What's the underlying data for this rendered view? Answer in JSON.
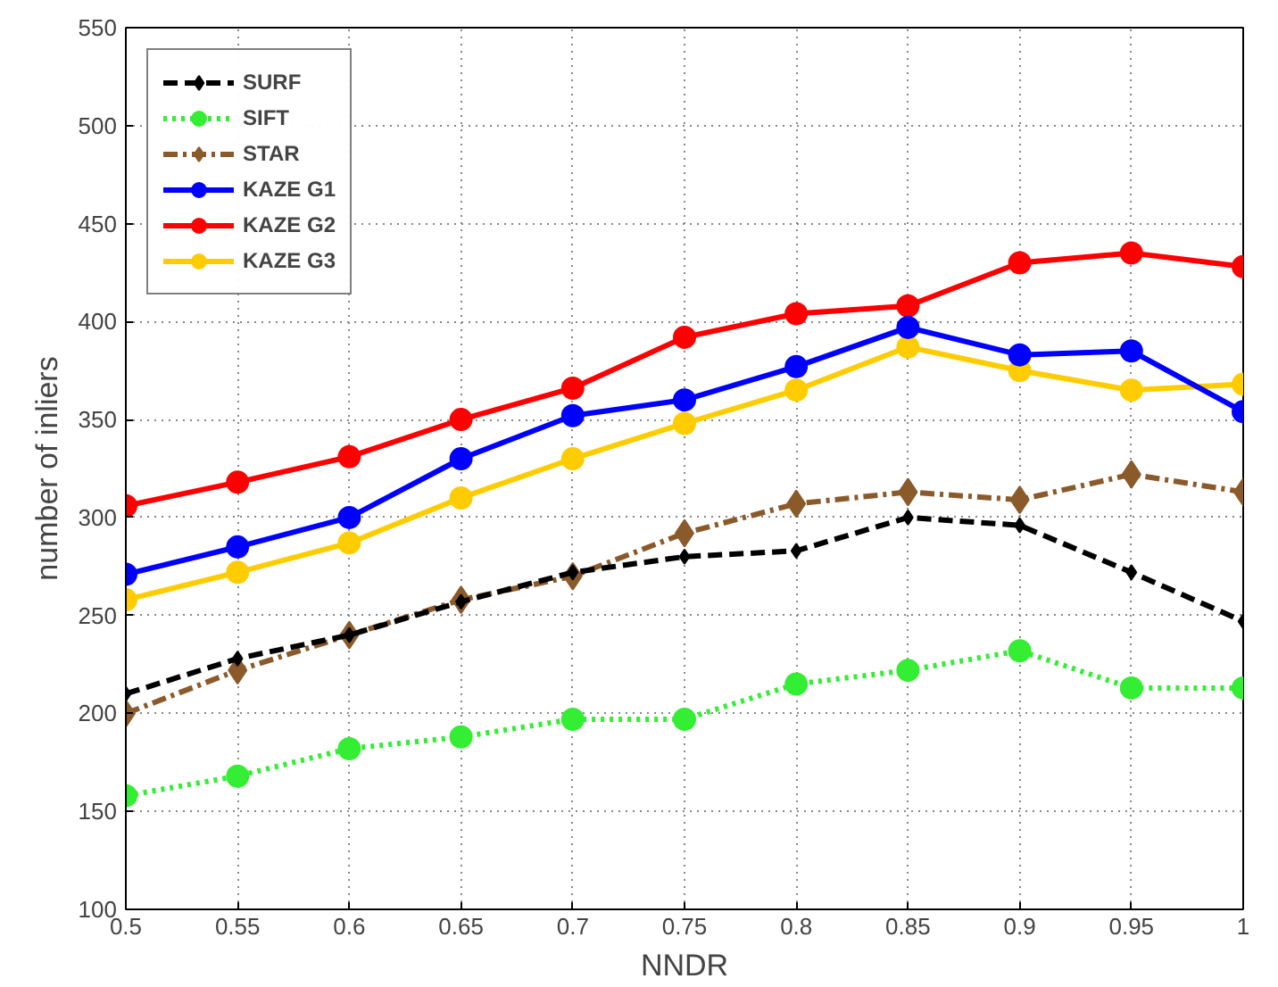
{
  "chart_data": {
    "type": "line",
    "xlabel": "NNDR",
    "ylabel": "number of inliers",
    "x": [
      0.5,
      0.55,
      0.6,
      0.65,
      0.7,
      0.75,
      0.8,
      0.85,
      0.9,
      0.95,
      1
    ],
    "xlim": [
      0.5,
      1
    ],
    "xticks": [
      0.5,
      0.55,
      0.6,
      0.65,
      0.7,
      0.75,
      0.8,
      0.85,
      0.9,
      0.95,
      1
    ],
    "ylim": [
      100,
      550
    ],
    "yticks": [
      100,
      150,
      200,
      250,
      300,
      350,
      400,
      450,
      500,
      550
    ],
    "grid": true,
    "legend": "top left",
    "series": [
      {
        "name": "SURF",
        "color": "#000000",
        "line_style": "dashed",
        "marker": "diamond",
        "values": [
          210,
          228,
          240,
          257,
          272,
          280,
          283,
          300,
          296,
          272,
          247
        ]
      },
      {
        "name": "SIFT",
        "color": "#33ee33",
        "line_style": "dotted",
        "marker": "circle",
        "values": [
          158,
          168,
          182,
          188,
          197,
          197,
          215,
          222,
          232,
          213,
          213
        ]
      },
      {
        "name": "STAR",
        "color": "#8b5a2b",
        "line_style": "dashdot",
        "marker": "diamond",
        "values": [
          200,
          222,
          240,
          258,
          270,
          292,
          307,
          313,
          309,
          322,
          313
        ]
      },
      {
        "name": "KAZE G1",
        "color": "#0000ff",
        "line_style": "solid",
        "marker": "circle",
        "values": [
          271,
          285,
          300,
          330,
          352,
          360,
          377,
          397,
          383,
          385,
          354
        ]
      },
      {
        "name": "KAZE G2",
        "color": "#ff0000",
        "line_style": "solid",
        "marker": "circle",
        "values": [
          306,
          318,
          331,
          350,
          366,
          392,
          404,
          408,
          430,
          435,
          428
        ]
      },
      {
        "name": "KAZE G3",
        "color": "#ffcc00",
        "line_style": "solid",
        "marker": "circle",
        "values": [
          258,
          272,
          287,
          310,
          330,
          348,
          365,
          387,
          375,
          365,
          368
        ]
      }
    ]
  }
}
